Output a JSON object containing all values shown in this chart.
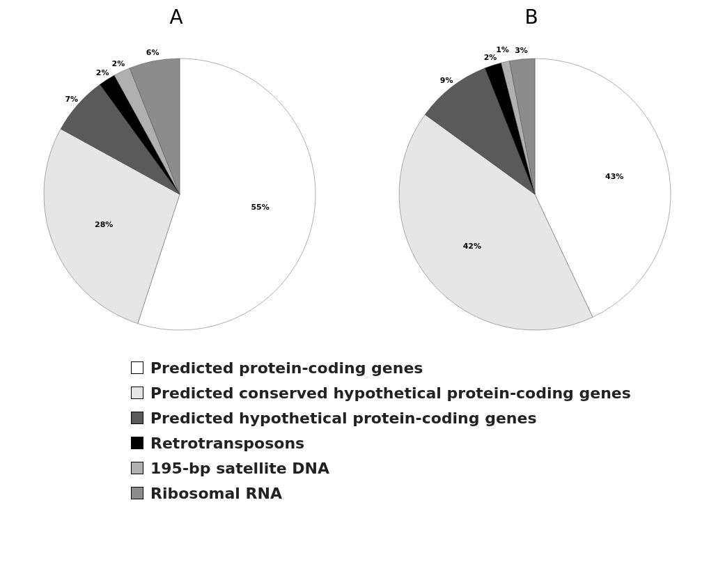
{
  "chart_data": [
    {
      "type": "pie",
      "title": "A",
      "categories": [
        "Predicted protein-coding genes",
        "Predicted conserved hypothetical protein-coding genes",
        "Predicted hypothetical protein-coding genes",
        "Retrotransposons",
        "195-bp satellite DNA",
        "Ribosomal RNA"
      ],
      "values": [
        55,
        28,
        7,
        2,
        2,
        6
      ],
      "value_labels": [
        "55%",
        "28%",
        "7%",
        "2%",
        "2%",
        "6%"
      ],
      "colors": [
        "#ffffff",
        "#e6e6e6",
        "#5a5a5a",
        "#000000",
        "#b0b0b0",
        "#8c8c8c"
      ],
      "legend": "bottom"
    },
    {
      "type": "pie",
      "title": "B",
      "categories": [
        null,
        null,
        null,
        null,
        null,
        null
      ],
      "values": [
        43,
        42,
        9,
        2,
        1,
        3
      ],
      "value_labels": [
        "43%",
        "42%",
        "9%",
        "2%",
        "1%",
        "3%"
      ],
      "colors": [
        "#ffffff",
        "#e6e6e6",
        "#5a5a5a",
        "#000000",
        "#b0b0b0",
        "#8c8c8c"
      ]
    }
  ]
}
